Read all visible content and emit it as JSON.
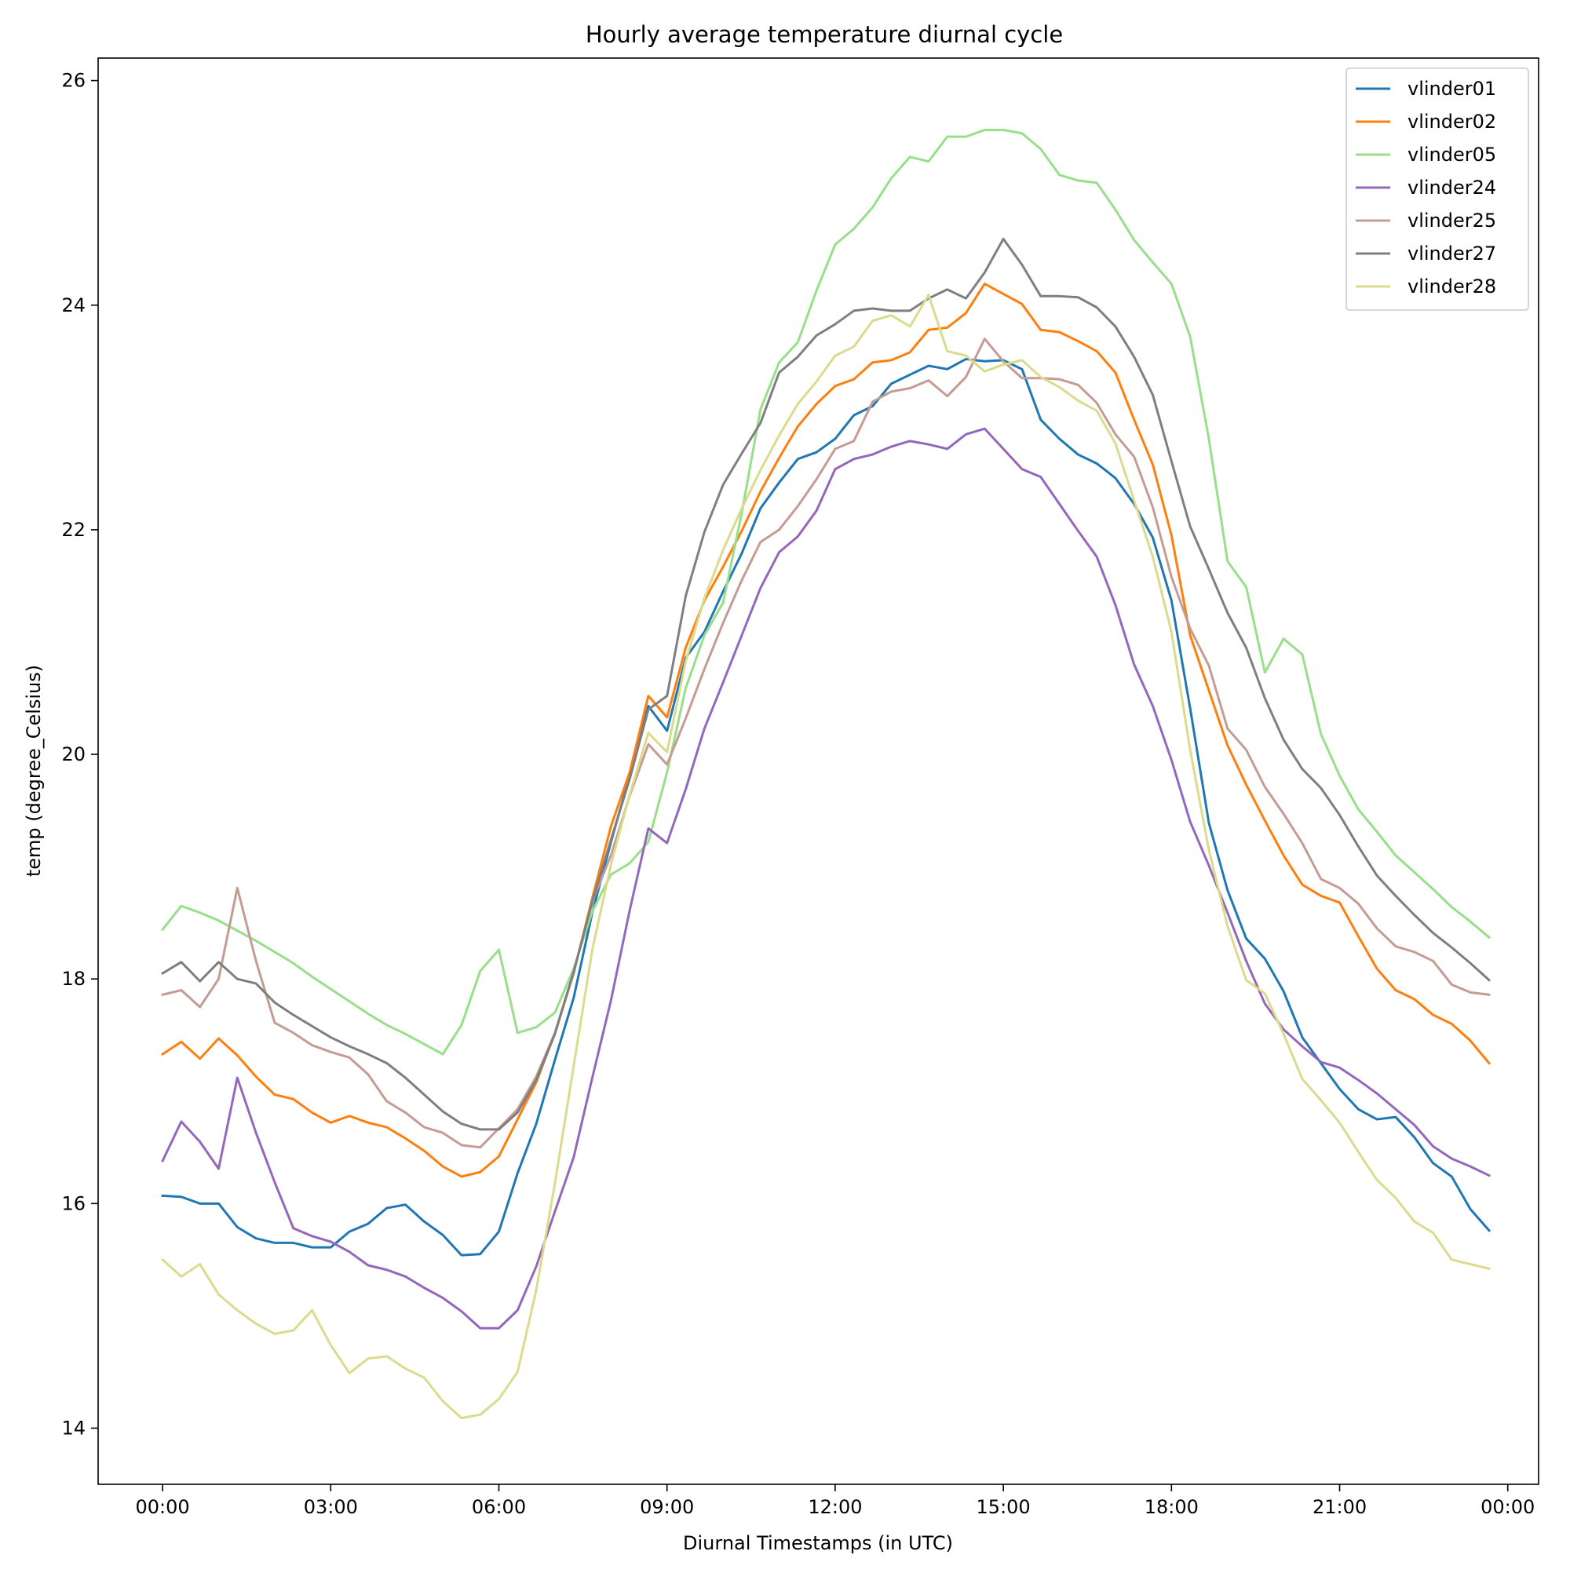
{
  "chart_data": {
    "type": "line",
    "title": "Hourly average temperature diurnal cycle",
    "xlabel": "Diurnal Timestamps (in UTC)",
    "ylabel": "temp (degree_Celsius)",
    "x_unit": "hours (UTC)",
    "x": [
      0,
      0.3333,
      0.6667,
      1,
      1.3333,
      1.6667,
      2,
      2.3333,
      2.6667,
      3,
      3.3333,
      3.6667,
      4,
      4.3333,
      4.6667,
      5,
      5.3333,
      5.6667,
      6,
      6.3333,
      6.6667,
      7,
      7.3333,
      7.6667,
      8,
      8.3333,
      8.6667,
      9,
      9.3333,
      9.6667,
      10,
      10.3333,
      10.6667,
      11,
      11.3333,
      11.6667,
      12,
      12.3333,
      12.6667,
      13,
      13.3333,
      13.6667,
      14,
      14.3333,
      14.6667,
      15,
      15.3333,
      15.6667,
      16,
      16.3333,
      16.6667,
      17,
      17.3333,
      17.6667,
      18,
      18.3333,
      18.6667,
      19,
      19.3333,
      19.6667,
      20,
      20.3333,
      20.6667,
      21,
      21.3333,
      21.6667,
      22,
      22.3333,
      22.6667,
      23,
      23.3333,
      23.6667
    ],
    "xlim": [
      -1.15,
      24.55
    ],
    "ylim": [
      13.5,
      26.2
    ],
    "x_ticks": [
      {
        "value": 0,
        "label": "00:00"
      },
      {
        "value": 3,
        "label": "03:00"
      },
      {
        "value": 6,
        "label": "06:00"
      },
      {
        "value": 9,
        "label": "09:00"
      },
      {
        "value": 12,
        "label": "12:00"
      },
      {
        "value": 15,
        "label": "15:00"
      },
      {
        "value": 18,
        "label": "18:00"
      },
      {
        "value": 21,
        "label": "21:00"
      },
      {
        "value": 24,
        "label": "00:00"
      }
    ],
    "y_ticks": [
      {
        "value": 14,
        "label": "14"
      },
      {
        "value": 16,
        "label": "16"
      },
      {
        "value": 18,
        "label": "18"
      },
      {
        "value": 20,
        "label": "20"
      },
      {
        "value": 22,
        "label": "22"
      },
      {
        "value": 24,
        "label": "24"
      },
      {
        "value": 26,
        "label": "26"
      }
    ],
    "grid": false,
    "legend_position": "top-right",
    "series": [
      {
        "name": "vlinder01",
        "color": "#1f77b4",
        "values": [
          16.07,
          16.06,
          16.0,
          16.0,
          15.79,
          15.69,
          15.65,
          15.65,
          15.61,
          15.61,
          15.75,
          15.82,
          15.96,
          15.99,
          15.84,
          15.72,
          15.54,
          15.55,
          15.75,
          16.27,
          16.71,
          17.28,
          17.83,
          18.59,
          19.22,
          19.81,
          20.43,
          20.21,
          20.86,
          21.09,
          21.45,
          21.79,
          22.19,
          22.42,
          22.63,
          22.69,
          22.81,
          23.02,
          23.1,
          23.3,
          23.38,
          23.46,
          23.43,
          23.52,
          23.5,
          23.51,
          23.43,
          22.98,
          22.81,
          22.67,
          22.59,
          22.46,
          22.23,
          21.93,
          21.37,
          20.41,
          19.39,
          18.79,
          18.36,
          18.18,
          17.89,
          17.48,
          17.25,
          17.02,
          16.84,
          16.75,
          16.77,
          16.59,
          16.36,
          16.24,
          15.95,
          15.76
        ]
      },
      {
        "name": "vlinder02",
        "color": "#ff7f0e",
        "values": [
          17.33,
          17.44,
          17.29,
          17.47,
          17.32,
          17.13,
          16.97,
          16.93,
          16.81,
          16.72,
          16.78,
          16.72,
          16.68,
          16.58,
          16.47,
          16.33,
          16.24,
          16.28,
          16.42,
          16.75,
          17.08,
          17.52,
          18.05,
          18.72,
          19.36,
          19.84,
          20.52,
          20.33,
          20.95,
          21.37,
          21.67,
          21.99,
          22.34,
          22.64,
          22.92,
          23.12,
          23.28,
          23.34,
          23.49,
          23.51,
          23.58,
          23.78,
          23.8,
          23.93,
          24.19,
          24.1,
          24.01,
          23.78,
          23.76,
          23.68,
          23.59,
          23.4,
          22.98,
          22.58,
          21.95,
          21.06,
          20.57,
          20.08,
          19.73,
          19.41,
          19.1,
          18.84,
          18.74,
          18.68,
          18.38,
          18.09,
          17.9,
          17.82,
          17.68,
          17.6,
          17.45,
          17.25
        ]
      },
      {
        "name": "vlinder05",
        "color": "#98df8a",
        "values": [
          18.44,
          18.65,
          18.59,
          18.52,
          18.43,
          18.34,
          18.24,
          18.14,
          18.02,
          17.91,
          17.8,
          17.69,
          17.59,
          17.51,
          17.42,
          17.33,
          17.59,
          18.07,
          18.26,
          17.52,
          17.57,
          17.7,
          18.09,
          18.6,
          18.93,
          19.03,
          19.22,
          19.84,
          20.59,
          21.06,
          21.35,
          22.15,
          23.07,
          23.49,
          23.67,
          24.13,
          24.54,
          24.68,
          24.87,
          25.13,
          25.32,
          25.28,
          25.5,
          25.5,
          25.56,
          25.56,
          25.53,
          25.39,
          25.16,
          25.11,
          25.09,
          24.85,
          24.58,
          24.38,
          24.19,
          23.72,
          22.81,
          21.72,
          21.49,
          20.73,
          21.03,
          20.89,
          20.18,
          19.81,
          19.51,
          19.31,
          19.1,
          18.95,
          18.8,
          18.64,
          18.51,
          18.37
        ]
      },
      {
        "name": "vlinder24",
        "color": "#9467bd",
        "values": [
          16.38,
          16.73,
          16.55,
          16.31,
          17.12,
          16.63,
          16.19,
          15.78,
          15.71,
          15.66,
          15.57,
          15.45,
          15.41,
          15.35,
          15.25,
          15.16,
          15.04,
          14.89,
          14.89,
          15.05,
          15.44,
          15.93,
          16.41,
          17.12,
          17.81,
          18.61,
          19.34,
          19.21,
          19.69,
          20.23,
          20.64,
          21.06,
          21.48,
          21.8,
          21.94,
          22.17,
          22.54,
          22.63,
          22.67,
          22.74,
          22.79,
          22.76,
          22.72,
          22.85,
          22.9,
          22.72,
          22.54,
          22.47,
          22.23,
          21.99,
          21.76,
          21.33,
          20.8,
          20.43,
          19.95,
          19.4,
          19.01,
          18.59,
          18.16,
          17.78,
          17.55,
          17.4,
          17.26,
          17.21,
          17.1,
          16.98,
          16.84,
          16.7,
          16.51,
          16.4,
          16.33,
          16.25
        ]
      },
      {
        "name": "vlinder25",
        "color": "#c49c94",
        "values": [
          17.86,
          17.9,
          17.75,
          18.0,
          18.81,
          18.16,
          17.61,
          17.52,
          17.41,
          17.35,
          17.3,
          17.15,
          16.91,
          16.81,
          16.68,
          16.63,
          16.52,
          16.5,
          16.67,
          16.84,
          17.13,
          17.52,
          18.06,
          18.69,
          19.1,
          19.63,
          20.09,
          19.91,
          20.32,
          20.76,
          21.17,
          21.55,
          21.89,
          22.0,
          22.21,
          22.45,
          22.72,
          22.79,
          23.14,
          23.23,
          23.26,
          23.33,
          23.19,
          23.36,
          23.7,
          23.5,
          23.35,
          23.35,
          23.34,
          23.29,
          23.13,
          22.85,
          22.65,
          22.2,
          21.58,
          21.12,
          20.79,
          20.23,
          20.04,
          19.71,
          19.47,
          19.21,
          18.89,
          18.81,
          18.67,
          18.45,
          18.29,
          18.24,
          18.16,
          17.95,
          17.88,
          17.86
        ]
      },
      {
        "name": "vlinder27",
        "color": "#7f7f7f",
        "values": [
          18.05,
          18.15,
          17.98,
          18.15,
          18.0,
          17.96,
          17.79,
          17.68,
          17.58,
          17.48,
          17.4,
          17.33,
          17.25,
          17.12,
          16.97,
          16.82,
          16.71,
          16.66,
          16.66,
          16.81,
          17.1,
          17.51,
          18.06,
          18.69,
          19.24,
          19.78,
          20.4,
          20.52,
          21.41,
          21.98,
          22.4,
          22.68,
          22.95,
          23.4,
          23.54,
          23.73,
          23.83,
          23.95,
          23.97,
          23.95,
          23.95,
          24.06,
          24.14,
          24.06,
          24.29,
          24.59,
          24.36,
          24.08,
          24.08,
          24.07,
          23.98,
          23.81,
          23.54,
          23.2,
          22.61,
          22.03,
          21.65,
          21.26,
          20.95,
          20.5,
          20.13,
          19.87,
          19.7,
          19.46,
          19.18,
          18.92,
          18.74,
          18.57,
          18.41,
          18.28,
          18.14,
          17.99
        ]
      },
      {
        "name": "vlinder28",
        "color": "#dbdb8d",
        "values": [
          15.5,
          15.35,
          15.46,
          15.19,
          15.05,
          14.93,
          14.84,
          14.87,
          15.05,
          14.74,
          14.49,
          14.62,
          14.64,
          14.53,
          14.45,
          14.24,
          14.09,
          14.12,
          14.26,
          14.5,
          15.23,
          16.18,
          17.22,
          18.26,
          19.02,
          19.64,
          20.19,
          20.02,
          20.83,
          21.39,
          21.82,
          22.19,
          22.53,
          22.84,
          23.12,
          23.32,
          23.55,
          23.63,
          23.86,
          23.91,
          23.81,
          24.09,
          23.59,
          23.55,
          23.41,
          23.47,
          23.51,
          23.36,
          23.27,
          23.15,
          23.06,
          22.77,
          22.26,
          21.76,
          21.09,
          20.04,
          19.15,
          18.47,
          17.99,
          17.87,
          17.51,
          17.11,
          16.92,
          16.72,
          16.46,
          16.21,
          16.05,
          15.84,
          15.74,
          15.5,
          15.46,
          15.42
        ]
      }
    ]
  }
}
